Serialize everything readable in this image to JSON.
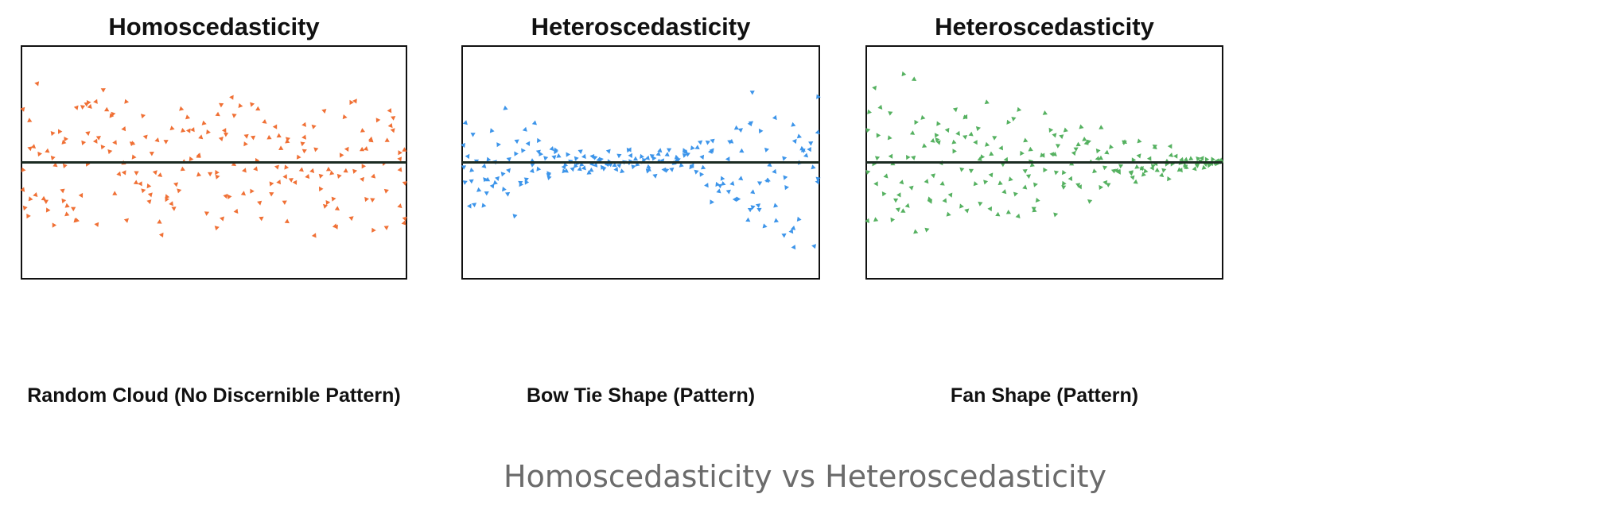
{
  "caption": "Homoscedasticity vs Heteroscedasticity",
  "chart_data": [
    {
      "type": "scatter",
      "title": "Homoscedasticity",
      "xlabel": "Random Cloud (No Discernible Pattern)",
      "ylabel": "",
      "grid": false,
      "pattern": "random cloud",
      "color": "#f07035",
      "reference_line": "horizontal at y = 0",
      "xlim": [
        0,
        100
      ],
      "ylim": [
        -1,
        1
      ],
      "points_per_step": 4,
      "spread": [
        0.72,
        0.73,
        0.72,
        0.73,
        0.72,
        0.73,
        0.72,
        0.73,
        0.72,
        0.73,
        0.72,
        0.73,
        0.72,
        0.73,
        0.72,
        0.73,
        0.72,
        0.73,
        0.72,
        0.73,
        0.72,
        0.73,
        0.72,
        0.73,
        0.72,
        0.73,
        0.72,
        0.73,
        0.72,
        0.73,
        0.72,
        0.73,
        0.72,
        0.73,
        0.72,
        0.73,
        0.72,
        0.73,
        0.72,
        0.73,
        0.72,
        0.73,
        0.72,
        0.73,
        0.72,
        0.73,
        0.72,
        0.73,
        0.72,
        0.73,
        0.72
      ]
    },
    {
      "type": "scatter",
      "title": "Heteroscedasticity",
      "xlabel": "Bow Tie Shape (Pattern)",
      "ylabel": "",
      "grid": false,
      "pattern": "bow tie",
      "color": "#3d95ea",
      "reference_line": "horizontal at y = 0",
      "xlim": [
        0,
        100
      ],
      "ylim": [
        -1,
        1
      ],
      "points_per_step": 4,
      "spread": [
        0.8,
        0.78,
        0.74,
        0.7,
        0.66,
        0.61,
        0.56,
        0.51,
        0.46,
        0.41,
        0.36,
        0.31,
        0.27,
        0.23,
        0.2,
        0.17,
        0.15,
        0.14,
        0.13,
        0.12,
        0.12,
        0.12,
        0.12,
        0.12,
        0.12,
        0.12,
        0.12,
        0.12,
        0.12,
        0.13,
        0.14,
        0.16,
        0.19,
        0.24,
        0.3,
        0.37,
        0.44,
        0.51,
        0.58,
        0.64,
        0.69,
        0.73,
        0.76,
        0.78,
        0.79,
        0.8,
        0.8,
        0.8,
        0.8,
        0.8,
        0.8
      ]
    },
    {
      "type": "scatter",
      "title": "Heteroscedasticity",
      "xlabel": "Fan Shape (Pattern)",
      "ylabel": "",
      "grid": false,
      "pattern": "fan",
      "color": "#55b160",
      "reference_line": "horizontal at y = 0",
      "xlim": [
        0,
        100
      ],
      "ylim": [
        -1,
        1
      ],
      "points_per_step": 4,
      "spread": [
        0.88,
        0.87,
        0.86,
        0.85,
        0.84,
        0.83,
        0.82,
        0.81,
        0.8,
        0.79,
        0.78,
        0.77,
        0.76,
        0.75,
        0.73,
        0.72,
        0.7,
        0.68,
        0.66,
        0.64,
        0.62,
        0.6,
        0.58,
        0.56,
        0.54,
        0.52,
        0.5,
        0.48,
        0.46,
        0.44,
        0.42,
        0.4,
        0.38,
        0.36,
        0.34,
        0.32,
        0.3,
        0.28,
        0.26,
        0.24,
        0.22,
        0.2,
        0.18,
        0.16,
        0.14,
        0.12,
        0.1,
        0.08,
        0.06,
        0.04,
        0.03
      ]
    }
  ]
}
